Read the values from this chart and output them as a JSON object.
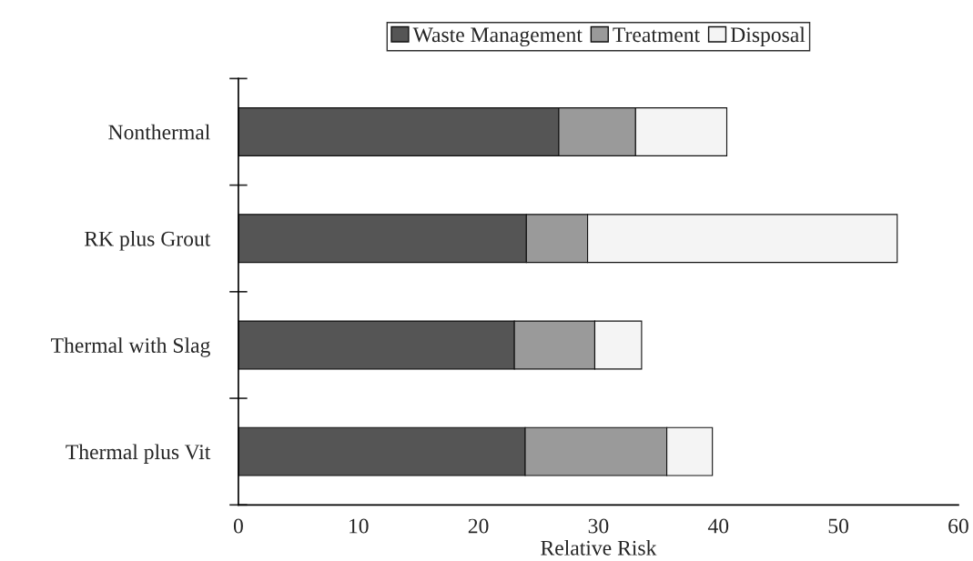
{
  "chart_data": {
    "type": "bar",
    "orientation": "horizontal",
    "stacked": true,
    "categories": [
      "Nonthermal",
      "RK plus Grout",
      "Thermal with Slag",
      "Thermal plus Vit"
    ],
    "series": [
      {
        "name": "Waste Management",
        "color": "#555555",
        "values": [
          26.7,
          24.0,
          23.0,
          23.9
        ]
      },
      {
        "name": "Treatment",
        "color": "#9a9a9a",
        "values": [
          6.4,
          5.1,
          6.7,
          11.8
        ]
      },
      {
        "name": "Disposal",
        "color": "#f4f4f4",
        "values": [
          7.6,
          25.8,
          3.9,
          3.8
        ]
      }
    ],
    "xlabel": "Relative Risk",
    "xlim": [
      0,
      60
    ],
    "xticks": [
      0,
      10,
      20,
      30,
      40,
      50,
      60
    ],
    "grid": false,
    "legend": "top"
  }
}
